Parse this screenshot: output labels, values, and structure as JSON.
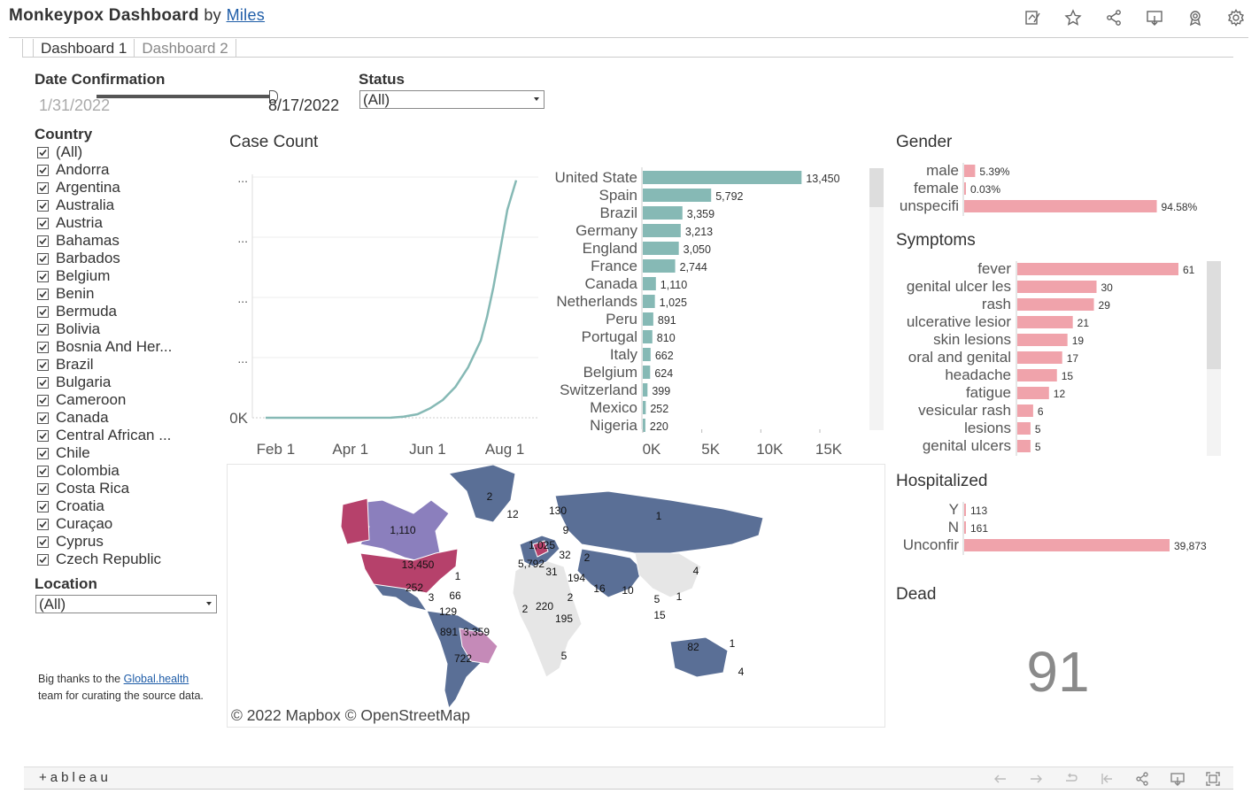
{
  "header": {
    "title": "Monkeypox Dashboard",
    "by": "by",
    "author": "Miles"
  },
  "toolbar_icons": [
    "edit-icon",
    "star-icon",
    "share-icon",
    "download-icon",
    "badge-icon",
    "settings-icon"
  ],
  "tabs": [
    {
      "label": "Dashboard 1",
      "active": true
    },
    {
      "label": "Dashboard 2",
      "active": false
    }
  ],
  "filters": {
    "date_label": "Date Confirmation",
    "date_start": "1/31/2022",
    "date_end": "8/17/2022",
    "status_label": "Status",
    "status_value": "(All)",
    "country_label": "Country",
    "countries": [
      "(All)",
      "Andorra",
      "Argentina",
      "Australia",
      "Austria",
      "Bahamas",
      "Barbados",
      "Belgium",
      "Benin",
      "Bermuda",
      "Bolivia",
      "Bosnia And Her...",
      "Brazil",
      "Bulgaria",
      "Cameroon",
      "Canada",
      "Central African ...",
      "Chile",
      "Colombia",
      "Costa Rica",
      "Croatia",
      "Curaçao",
      "Cyprus",
      "Czech Republic"
    ],
    "location_label": "Location",
    "location_value": "(All)"
  },
  "thanks": {
    "prefix": "Big thanks to the ",
    "link": "Global.health",
    "suffix": " team for curating the source data."
  },
  "case_count": {
    "title": "Case Count",
    "line_chart": {
      "type": "line",
      "x_ticks": [
        "Feb 1",
        "Apr 1",
        "Jun 1",
        "Aug 1"
      ],
      "y_ticks": [
        "0K",
        "...",
        "...",
        "...",
        "..."
      ],
      "x": [
        "2022-01-31",
        "2022-05-10",
        "2022-05-20",
        "2022-05-31",
        "2022-06-10",
        "2022-06-20",
        "2022-06-30",
        "2022-07-10",
        "2022-07-20",
        "2022-07-25",
        "2022-07-30",
        "2022-08-05",
        "2022-08-10",
        "2022-08-17"
      ],
      "values": [
        0,
        20,
        200,
        600,
        1600,
        3000,
        5200,
        8500,
        13000,
        17000,
        22000,
        29000,
        35000,
        40000
      ],
      "ylim": [
        0,
        41000
      ]
    },
    "bar_chart": {
      "type": "bar",
      "categories": [
        "United State",
        "Spain",
        "Brazil",
        "Germany",
        "England",
        "France",
        "Canada",
        "Netherlands",
        "Peru",
        "Portugal",
        "Italy",
        "Belgium",
        "Switzerland",
        "Mexico",
        "Nigeria"
      ],
      "values": [
        13450,
        5792,
        3359,
        3213,
        3050,
        2744,
        1110,
        1025,
        891,
        810,
        662,
        624,
        399,
        252,
        220
      ],
      "labels": [
        "13,450",
        "5,792",
        "3,359",
        "3,213",
        "3,050",
        "2,744",
        "1,110",
        "1,025",
        "891",
        "810",
        "662",
        "624",
        "399",
        "252",
        "220"
      ],
      "x_ticks": [
        "0K",
        "5K",
        "10K",
        "15K"
      ],
      "xlim": [
        0,
        15000
      ],
      "color": "#86b9b5"
    }
  },
  "gender": {
    "title": "Gender",
    "type": "bar",
    "categories": [
      "male",
      "female",
      "unspecifi"
    ],
    "values": [
      5.39,
      0.03,
      94.58
    ],
    "labels": [
      "5.39%",
      "0.03%",
      "94.58%"
    ],
    "xlim": [
      0,
      100
    ],
    "color": "#f0a3ab"
  },
  "symptoms": {
    "title": "Symptoms",
    "type": "bar",
    "categories": [
      "fever",
      "genital ulcer les",
      "rash",
      "ulcerative lesior",
      "skin lesions",
      "oral and genital",
      "headache",
      "fatigue",
      "vesicular rash",
      "lesions",
      "genital ulcers"
    ],
    "values": [
      61,
      30,
      29,
      21,
      19,
      17,
      15,
      12,
      6,
      5,
      5
    ],
    "labels": [
      "61",
      "30",
      "29",
      "21",
      "19",
      "17",
      "15",
      "12",
      "6",
      "5",
      "5"
    ],
    "xlim": [
      0,
      61
    ],
    "color": "#f0a3ab"
  },
  "hospitalized": {
    "title": "Hospitalized",
    "type": "bar",
    "categories": [
      "Y",
      "N",
      "Unconfir"
    ],
    "values": [
      113,
      161,
      39873
    ],
    "labels": [
      "113",
      "161",
      "39,873"
    ],
    "xlim": [
      0,
      39873
    ],
    "color": "#f0a3ab"
  },
  "dead": {
    "title": "Dead",
    "value": "91"
  },
  "map": {
    "attribution": "© 2022 Mapbox © OpenStreetMap",
    "labels": [
      "2",
      "12",
      "130",
      "1",
      "9",
      "1,110",
      "1,025",
      "32",
      "13,450",
      "5,792",
      "31",
      "2",
      "1",
      "194",
      "16",
      "10",
      "4",
      "252",
      "66",
      "2",
      "220",
      "2",
      "5",
      "1",
      "3",
      "129",
      "15",
      "195",
      "891",
      "3,359",
      "82",
      "1",
      "722",
      "5",
      "4"
    ],
    "colors": {
      "low": "#5a6f96",
      "mid": "#8b7fbd",
      "high": "#b6416b",
      "brazil": "#c58ab8",
      "none": "#e6e6e6"
    }
  },
  "footer": {
    "logo": "+ableau"
  }
}
